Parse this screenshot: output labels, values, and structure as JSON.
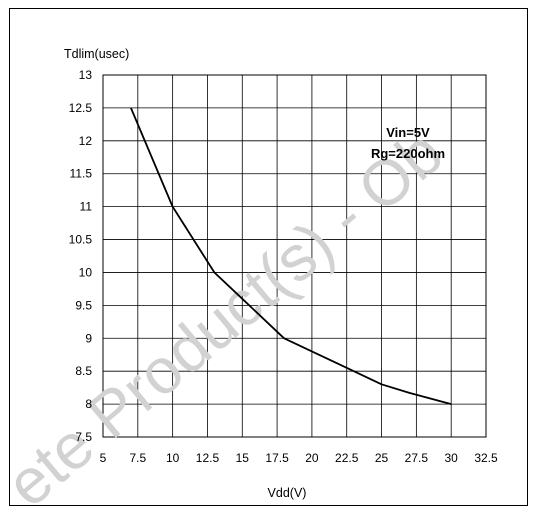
{
  "chart_data": {
    "type": "line",
    "title": "",
    "xlabel": "Vdd(V)",
    "ylabel": "Tdlim(usec)",
    "xlim": [
      5,
      32.5
    ],
    "ylim": [
      7.5,
      13
    ],
    "xticks": [
      "5",
      "7.5",
      "10",
      "12.5",
      "15",
      "17.5",
      "20",
      "22.5",
      "25",
      "27.5",
      "30",
      "32.5"
    ],
    "yticks": [
      "7.5",
      "8",
      "8.5",
      "9",
      "9.5",
      "10",
      "10.5",
      "11",
      "11.5",
      "12",
      "12.5",
      "13"
    ],
    "grid": true,
    "annotations": [
      "Vin=5V",
      "Rg=220ohm"
    ],
    "series": [
      {
        "x": [
          7,
          10,
          13,
          15,
          18,
          20,
          22,
          25,
          27,
          30
        ],
        "y": [
          12.5,
          11,
          10,
          9.6,
          9,
          8.8,
          8.6,
          8.3,
          8.17,
          8
        ],
        "color": "#000000"
      }
    ]
  },
  "watermark": "ete Product(s) - Ob"
}
